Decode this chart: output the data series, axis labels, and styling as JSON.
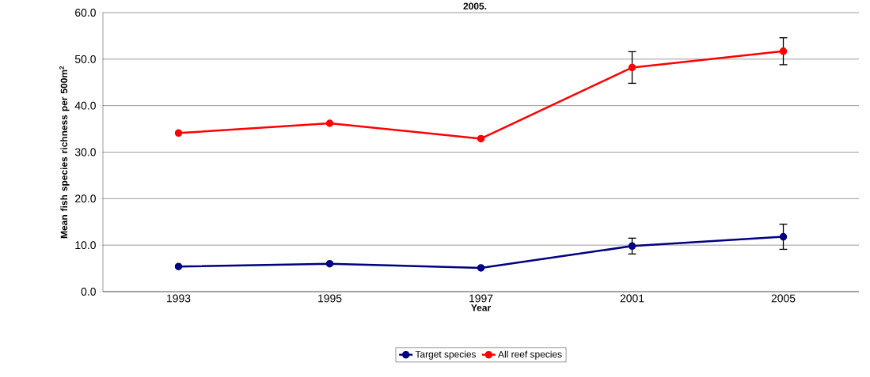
{
  "chart_data": {
    "type": "line",
    "title": "2005.",
    "xlabel": "Year",
    "ylabel": "Mean fish species richness per 500m$^{2}$",
    "categories": [
      "1993",
      "1995",
      "1997",
      "2001",
      "2005"
    ],
    "series": [
      {
        "name": "Target species",
        "color": "#000080",
        "values": [
          5.4,
          6.0,
          5.1,
          9.8,
          11.8
        ],
        "errors": [
          null,
          null,
          null,
          1.7,
          2.7
        ]
      },
      {
        "name": "All reef species",
        "color": "#ff0000",
        "values": [
          34.1,
          36.2,
          32.9,
          48.2,
          51.7
        ],
        "errors": [
          null,
          null,
          null,
          3.4,
          2.9
        ]
      }
    ],
    "ylim": [
      0,
      60
    ],
    "yticks": [
      {
        "value": 0,
        "label": "0.0"
      },
      {
        "value": 10,
        "label": "10.0"
      },
      {
        "value": 20,
        "label": "20.0"
      },
      {
        "value": 30,
        "label": "30.0"
      },
      {
        "value": 40,
        "label": "40.0"
      },
      {
        "value": 50,
        "label": "50.0"
      },
      {
        "value": 60,
        "label": "60.0"
      }
    ],
    "grid": "y",
    "legend": "bottom",
    "marker": "circle",
    "line_style": "solid"
  }
}
